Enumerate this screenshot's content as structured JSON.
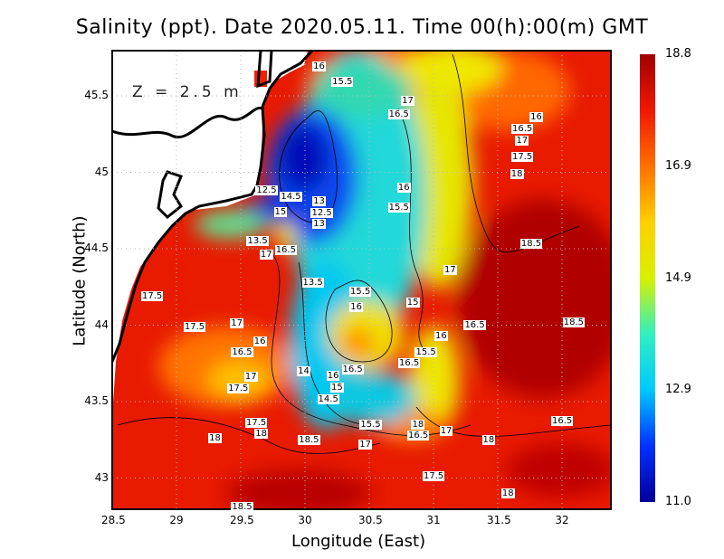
{
  "title": "Salinity (ppt). Date 2020.05.11. Time 00(h):00(m) GMT",
  "depth_label": "Z = 2.5 m",
  "x_axis": {
    "label": "Longitude (East)",
    "ticks": [
      "28.5",
      "29",
      "29.5",
      "30",
      "30.5",
      "31",
      "31.5",
      "32"
    ],
    "range": [
      28.5,
      32.38
    ]
  },
  "y_axis": {
    "label": "Latitude (North)",
    "ticks": [
      "43",
      "43.5",
      "44",
      "44.5",
      "45",
      "45.5"
    ],
    "range": [
      42.8,
      45.8
    ]
  },
  "colorbar": {
    "ticks": [
      "18.8",
      "16.9",
      "14.9",
      "12.9",
      "11.0"
    ],
    "min": 11.0,
    "max": 18.8,
    "colors": [
      "#00009a",
      "#0030ff",
      "#00c8ff",
      "#30f0c0",
      "#d8f000",
      "#ffd000",
      "#ff7000",
      "#f01800",
      "#a00000"
    ]
  },
  "chart_data": {
    "type": "heatmap",
    "title": "Salinity (ppt). Date 2020.05.11. Time 00(h):00(m) GMT",
    "xlabel": "Longitude (East)",
    "ylabel": "Latitude (North)",
    "xlim": [
      28.5,
      32.38
    ],
    "ylim": [
      42.8,
      45.8
    ],
    "zlim": [
      11.0,
      18.8
    ],
    "grid": true
  },
  "contour_labels": [
    {
      "value": "16",
      "lon": 30.11,
      "lat": 45.69
    },
    {
      "value": "15.5",
      "lon": 30.29,
      "lat": 45.59
    },
    {
      "value": "17",
      "lon": 30.8,
      "lat": 45.47
    },
    {
      "value": "16.5",
      "lon": 30.73,
      "lat": 45.38
    },
    {
      "value": "16",
      "lon": 31.8,
      "lat": 45.36
    },
    {
      "value": "16.5",
      "lon": 31.69,
      "lat": 45.29
    },
    {
      "value": "17",
      "lon": 31.69,
      "lat": 45.22
    },
    {
      "value": "17.5",
      "lon": 31.69,
      "lat": 45.1
    },
    {
      "value": "18",
      "lon": 31.65,
      "lat": 44.99
    },
    {
      "value": "12.5",
      "lon": 29.7,
      "lat": 44.88
    },
    {
      "value": "14.5",
      "lon": 29.89,
      "lat": 44.84
    },
    {
      "value": "13",
      "lon": 30.11,
      "lat": 44.81
    },
    {
      "value": "16",
      "lon": 30.77,
      "lat": 44.9
    },
    {
      "value": "12.5",
      "lon": 30.13,
      "lat": 44.76
    },
    {
      "value": "15",
      "lon": 29.81,
      "lat": 44.74
    },
    {
      "value": "13",
      "lon": 30.11,
      "lat": 44.7
    },
    {
      "value": "15.5",
      "lon": 30.73,
      "lat": 44.77
    },
    {
      "value": "13.5",
      "lon": 29.63,
      "lat": 44.55
    },
    {
      "value": "16.5",
      "lon": 29.85,
      "lat": 44.49
    },
    {
      "value": "17",
      "lon": 29.7,
      "lat": 44.46
    },
    {
      "value": "18.5",
      "lon": 31.76,
      "lat": 44.53
    },
    {
      "value": "17",
      "lon": 31.13,
      "lat": 44.36
    },
    {
      "value": "17.5",
      "lon": 28.81,
      "lat": 44.19
    },
    {
      "value": "13.5",
      "lon": 30.06,
      "lat": 44.28
    },
    {
      "value": "15.5",
      "lon": 30.43,
      "lat": 44.22
    },
    {
      "value": "15",
      "lon": 30.84,
      "lat": 44.15
    },
    {
      "value": "16",
      "lon": 30.4,
      "lat": 44.12
    },
    {
      "value": "17.5",
      "lon": 29.14,
      "lat": 43.99
    },
    {
      "value": "17",
      "lon": 29.47,
      "lat": 44.01
    },
    {
      "value": "16.5",
      "lon": 31.32,
      "lat": 44.0
    },
    {
      "value": "18.5",
      "lon": 32.09,
      "lat": 44.02
    },
    {
      "value": "16",
      "lon": 31.06,
      "lat": 43.93
    },
    {
      "value": "16.5",
      "lon": 29.51,
      "lat": 43.82
    },
    {
      "value": "16",
      "lon": 29.65,
      "lat": 43.87
    },
    {
      "value": "16.5",
      "lon": 30.37,
      "lat": 43.71
    },
    {
      "value": "16.5",
      "lon": 30.81,
      "lat": 43.75
    },
    {
      "value": "15.5",
      "lon": 30.94,
      "lat": 43.78
    },
    {
      "value": "14",
      "lon": 29.99,
      "lat": 43.7
    },
    {
      "value": "16",
      "lon": 30.22,
      "lat": 43.67
    },
    {
      "value": "17",
      "lon": 29.58,
      "lat": 43.66
    },
    {
      "value": "17.5",
      "lon": 29.48,
      "lat": 43.6
    },
    {
      "value": "15",
      "lon": 30.25,
      "lat": 43.59
    },
    {
      "value": "14.5",
      "lon": 30.18,
      "lat": 43.54
    },
    {
      "value": "15.5",
      "lon": 30.51,
      "lat": 43.35
    },
    {
      "value": "16.5",
      "lon": 32.0,
      "lat": 43.37
    },
    {
      "value": "18",
      "lon": 30.88,
      "lat": 43.35
    },
    {
      "value": "16.5",
      "lon": 30.88,
      "lat": 43.29
    },
    {
      "value": "17",
      "lon": 31.1,
      "lat": 43.31
    },
    {
      "value": "17.5",
      "lon": 29.62,
      "lat": 43.36
    },
    {
      "value": "18",
      "lon": 29.66,
      "lat": 43.33
    },
    {
      "value": "18",
      "lon": 29.3,
      "lat": 43.26
    },
    {
      "value": "18.5",
      "lon": 30.03,
      "lat": 43.25
    },
    {
      "value": "17",
      "lon": 30.47,
      "lat": 43.22
    },
    {
      "value": "18",
      "lon": 31.43,
      "lat": 43.25
    },
    {
      "value": "17.5",
      "lon": 31.0,
      "lat": 43.01
    },
    {
      "value": "18",
      "lon": 31.58,
      "lat": 42.9
    },
    {
      "value": "18.5",
      "lon": 29.51,
      "lat": 42.81
    }
  ]
}
